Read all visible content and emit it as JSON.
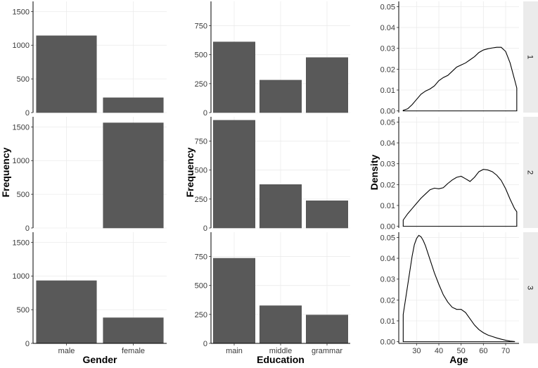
{
  "chart_data": [
    {
      "type": "bar",
      "id": "gender",
      "categories": [
        "male",
        "female"
      ],
      "xlabel": "Gender",
      "ylabel": "Frequency",
      "ylim": [
        0,
        1650
      ],
      "yticks": [
        0,
        500,
        1000,
        1500
      ],
      "series": [
        {
          "name": "1",
          "values": [
            1140,
            220
          ]
        },
        {
          "name": "2",
          "values": [
            0,
            1560
          ]
        },
        {
          "name": "3",
          "values": [
            930,
            380
          ]
        }
      ]
    },
    {
      "type": "bar",
      "id": "education",
      "categories": [
        "main",
        "middle",
        "grammar"
      ],
      "xlabel": "Education",
      "ylabel": "Frequency",
      "ylim": [
        0,
        960
      ],
      "yticks": [
        0,
        250,
        500,
        750
      ],
      "series": [
        {
          "name": "1",
          "values": [
            610,
            280,
            475
          ]
        },
        {
          "name": "2",
          "values": [
            930,
            375,
            235
          ]
        },
        {
          "name": "3",
          "values": [
            735,
            325,
            245
          ]
        }
      ]
    },
    {
      "type": "area",
      "id": "age",
      "xlabel": "Age",
      "ylabel": "Density",
      "xlim": [
        22,
        76
      ],
      "ylim": [
        -0.0008,
        0.0525
      ],
      "xticks": [
        30,
        40,
        50,
        60,
        70
      ],
      "yticks": [
        0.0,
        0.01,
        0.02,
        0.03,
        0.04,
        0.05
      ],
      "ytick_labels": [
        "0.00",
        "0.01",
        "0.02",
        "0.03",
        "0.04",
        "0.05"
      ],
      "series": [
        {
          "name": "1",
          "x": [
            24,
            26,
            28,
            30,
            32,
            34,
            36,
            38,
            40,
            42,
            44,
            46,
            48,
            50,
            52,
            54,
            56,
            58,
            60,
            62,
            64,
            66,
            68,
            70,
            72,
            74,
            75
          ],
          "y": [
            0.0003,
            0.001,
            0.003,
            0.0055,
            0.008,
            0.0095,
            0.0105,
            0.012,
            0.0145,
            0.016,
            0.017,
            0.019,
            0.021,
            0.022,
            0.023,
            0.0245,
            0.026,
            0.028,
            0.0292,
            0.0298,
            0.0302,
            0.0305,
            0.0305,
            0.0285,
            0.023,
            0.015,
            0.011
          ]
        },
        {
          "name": "2",
          "x": [
            24,
            26,
            28,
            30,
            32,
            34,
            36,
            38,
            40,
            42,
            44,
            46,
            48,
            50,
            52,
            54,
            56,
            58,
            60,
            62,
            64,
            66,
            68,
            70,
            72,
            74,
            75
          ],
          "y": [
            0.003,
            0.006,
            0.0085,
            0.011,
            0.0135,
            0.0155,
            0.0175,
            0.0183,
            0.018,
            0.0185,
            0.0205,
            0.0222,
            0.0235,
            0.024,
            0.0228,
            0.0215,
            0.0235,
            0.0262,
            0.0273,
            0.027,
            0.0262,
            0.0245,
            0.022,
            0.018,
            0.013,
            0.0085,
            0.007
          ]
        },
        {
          "name": "3",
          "x": [
            24,
            25,
            26,
            27,
            28,
            29,
            30,
            31,
            32,
            33,
            34,
            36,
            38,
            40,
            42,
            44,
            46,
            48,
            50,
            52,
            54,
            56,
            58,
            60,
            62,
            64,
            66,
            68,
            70,
            72,
            74
          ],
          "y": [
            0.013,
            0.02,
            0.027,
            0.034,
            0.041,
            0.0465,
            0.0495,
            0.051,
            0.0503,
            0.0485,
            0.046,
            0.0395,
            0.033,
            0.0275,
            0.0225,
            0.019,
            0.0165,
            0.0155,
            0.0155,
            0.014,
            0.011,
            0.008,
            0.0058,
            0.0043,
            0.0032,
            0.0025,
            0.0018,
            0.0012,
            0.0007,
            0.0003,
            0.0001
          ]
        }
      ]
    }
  ],
  "strips": [
    "1",
    "2",
    "3"
  ]
}
